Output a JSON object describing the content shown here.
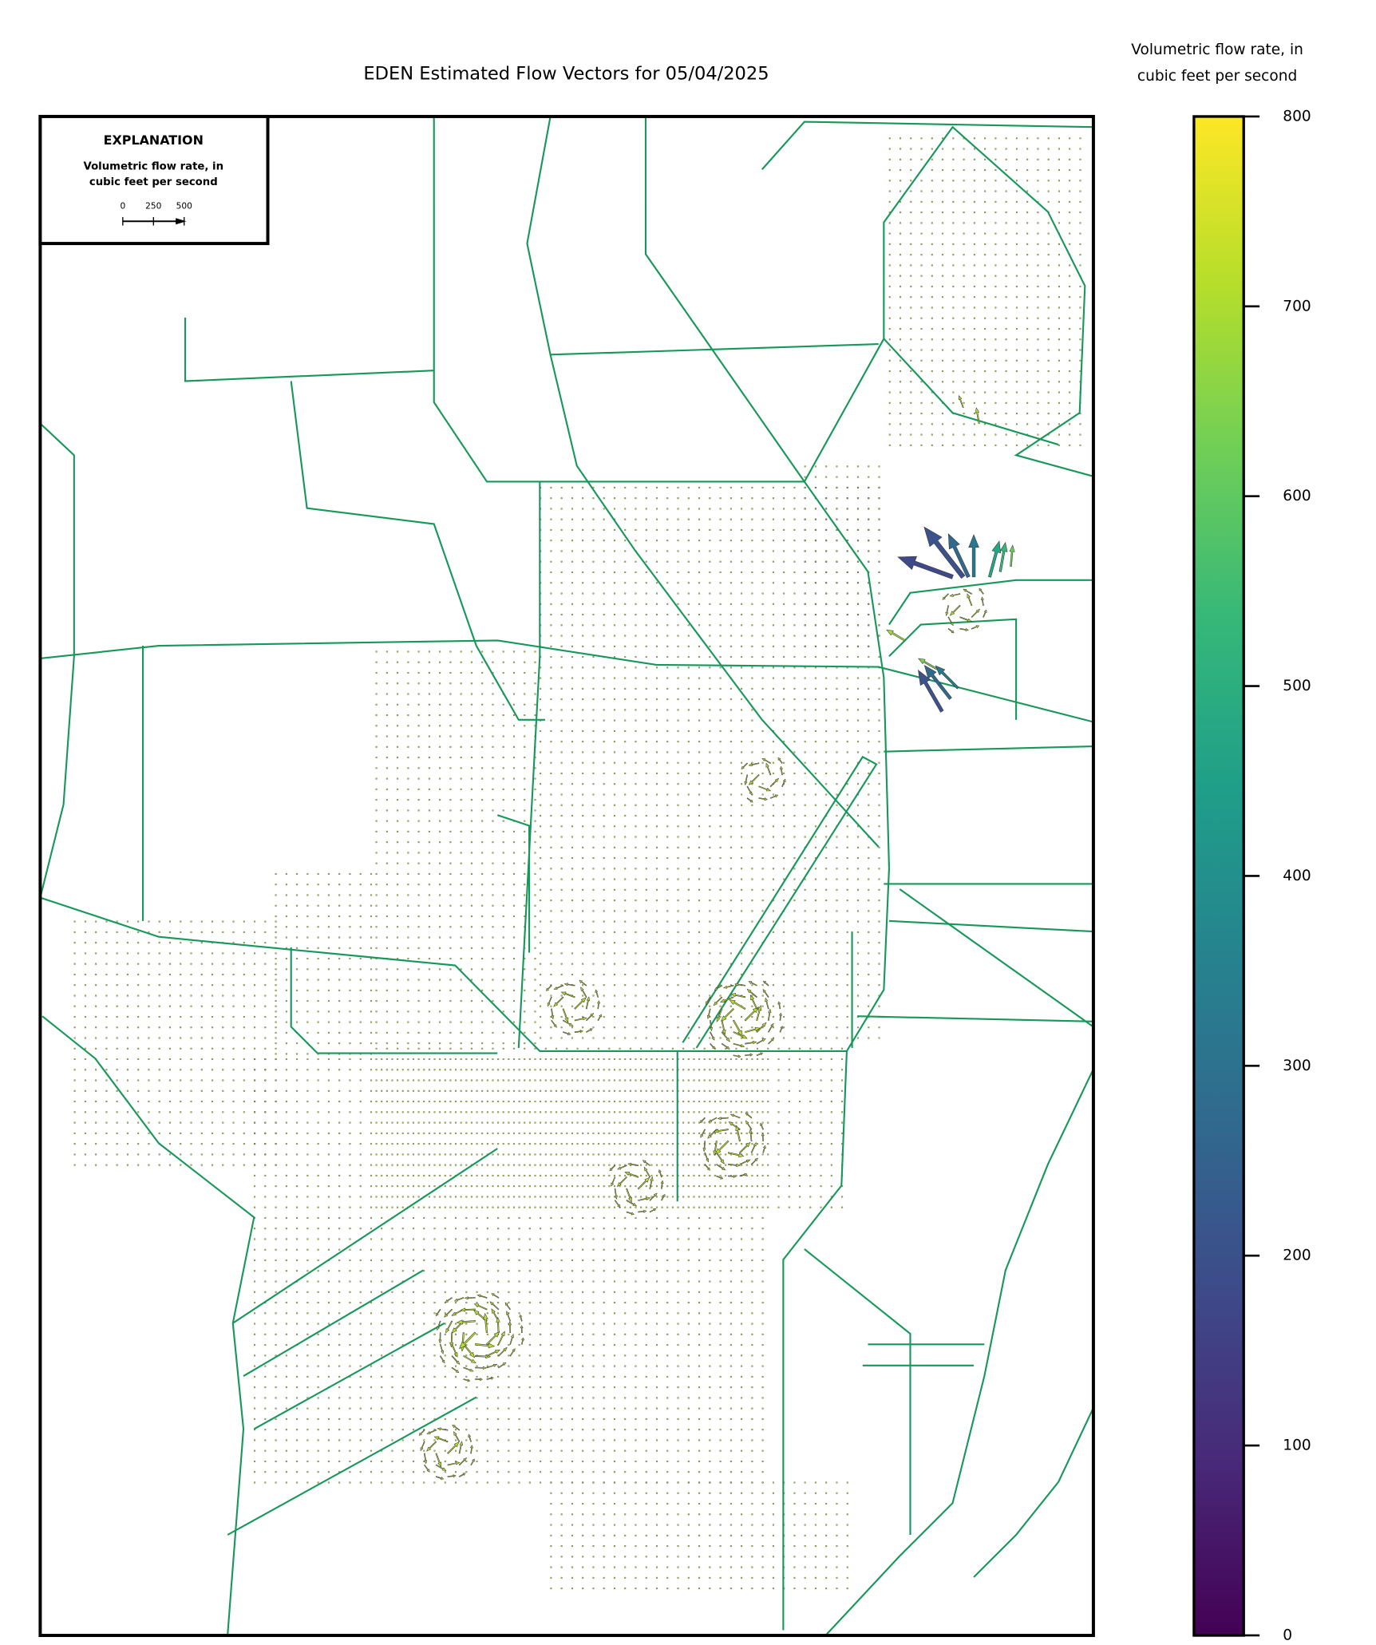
{
  "title": "EDEN Estimated Flow Vectors for 05/04/2025",
  "explanation": {
    "heading": "EXPLANATION",
    "label": [
      "Volumetric flow rate, in",
      "cubic feet per second"
    ],
    "scale_ticks": [
      0,
      250,
      500
    ]
  },
  "colorbar": {
    "label": [
      "Volumetric flow rate, in",
      "cubic feet per second"
    ],
    "lim": [
      0,
      800
    ],
    "ticks": [
      0,
      100,
      200,
      300,
      400,
      500,
      600,
      700,
      800
    ],
    "colormap": "viridis_r"
  }
}
